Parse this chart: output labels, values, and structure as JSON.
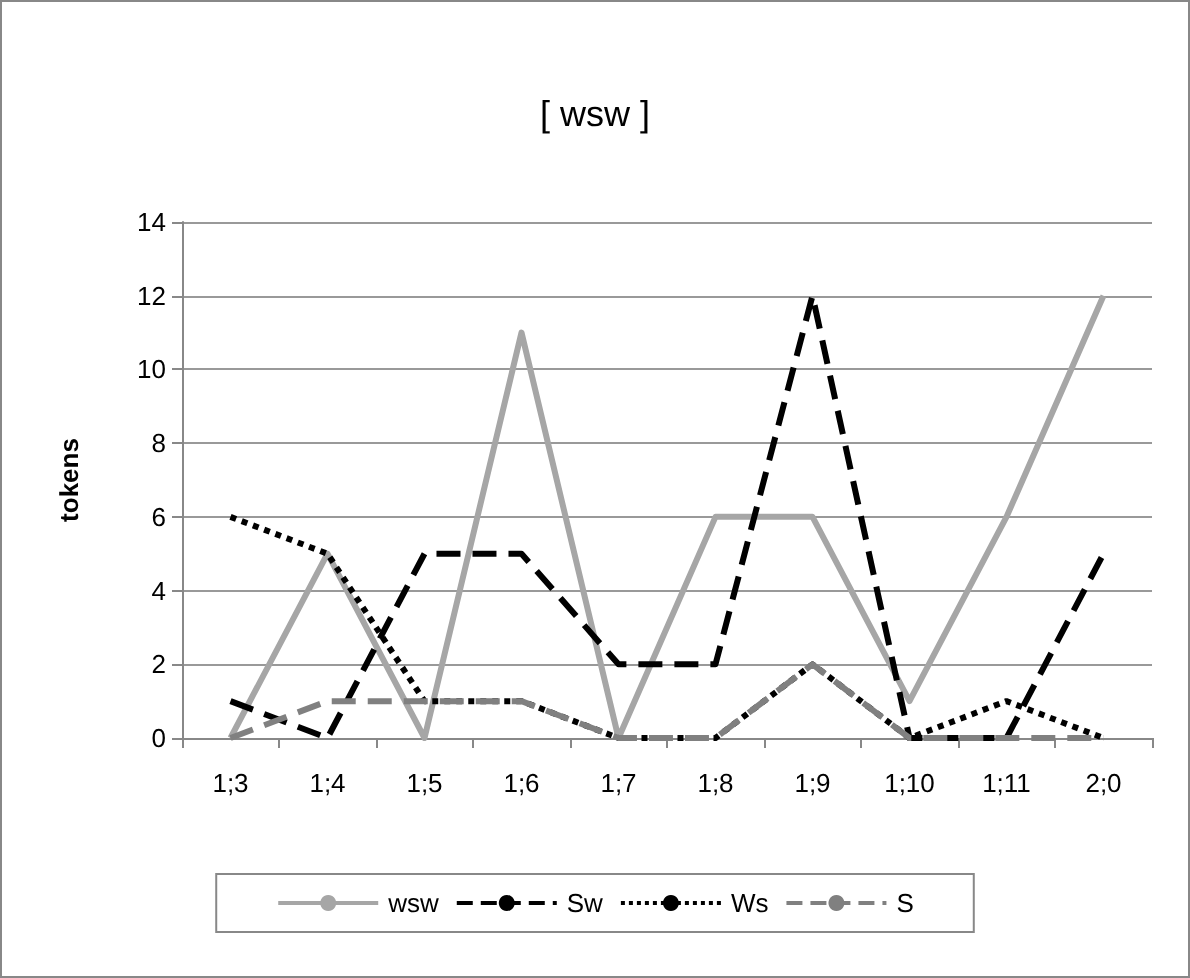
{
  "chart_data": {
    "type": "line",
    "title": "[ wsw ]",
    "ylabel": "tokens",
    "categories": [
      "1;3",
      "1;4",
      "1;5",
      "1;6",
      "1;7",
      "1;8",
      "1;9",
      "1;10",
      "1;11",
      "2;0"
    ],
    "series": [
      {
        "name": "wsw",
        "color": "#a6a6a6",
        "line_style": "solid",
        "values": [
          0,
          5,
          0,
          11,
          0,
          6,
          6,
          1,
          6,
          12
        ]
      },
      {
        "name": "Sw",
        "color": "#000000",
        "line_style": "dashed",
        "values": [
          1,
          0,
          5,
          5,
          2,
          2,
          12,
          0,
          0,
          5
        ]
      },
      {
        "name": "Ws",
        "color": "#000000",
        "line_style": "dotted",
        "values": [
          6,
          5,
          1,
          1,
          0,
          0,
          2,
          0,
          1,
          0
        ]
      },
      {
        "name": "S",
        "color": "#808080",
        "line_style": "dashed",
        "values": [
          0,
          1,
          1,
          1,
          0,
          0,
          2,
          0,
          0,
          0
        ]
      }
    ],
    "ylim": [
      0,
      14
    ],
    "yticks": [
      0,
      2,
      4,
      6,
      8,
      10,
      12,
      14
    ],
    "grid": "y",
    "legend": "bottom",
    "marker": "none"
  }
}
